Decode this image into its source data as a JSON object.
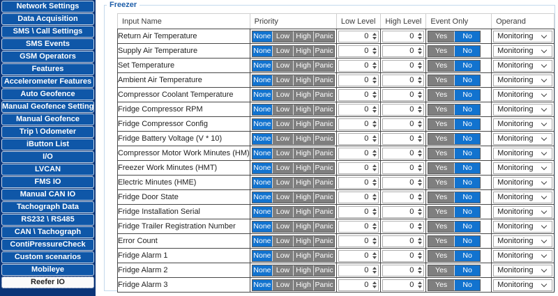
{
  "colors": {
    "accent": "#1273cf",
    "btn_gray": "#7f7f7f",
    "sidebar_bg": "#0b3578",
    "sidebar_btn": "#0f57a8",
    "group_title": "#1f5faa"
  },
  "sidebar": {
    "items": [
      {
        "label": "Network Settings",
        "selected": false
      },
      {
        "label": "Data Acquisition",
        "selected": false
      },
      {
        "label": "SMS \\ Call Settings",
        "selected": false
      },
      {
        "label": "SMS Events",
        "selected": false
      },
      {
        "label": "GSM Operators",
        "selected": false
      },
      {
        "label": "Features",
        "selected": false
      },
      {
        "label": "Accelerometer Features",
        "selected": false
      },
      {
        "label": "Auto Geofence",
        "selected": false
      },
      {
        "label": "Manual Geofence Settings",
        "selected": false
      },
      {
        "label": "Manual Geofence",
        "selected": false
      },
      {
        "label": "Trip \\ Odometer",
        "selected": false
      },
      {
        "label": "iButton List",
        "selected": false
      },
      {
        "label": "I/O",
        "selected": false
      },
      {
        "label": "LVCAN",
        "selected": false
      },
      {
        "label": "FMS IO",
        "selected": false
      },
      {
        "label": "Manual CAN IO",
        "selected": false
      },
      {
        "label": "Tachograph Data",
        "selected": false
      },
      {
        "label": "RS232 \\ RS485",
        "selected": false
      },
      {
        "label": "CAN \\ Tachograph",
        "selected": false
      },
      {
        "label": "ContiPressureCheck",
        "selected": false
      },
      {
        "label": "Custom scenarios",
        "selected": false
      },
      {
        "label": "Mobileye",
        "selected": false
      },
      {
        "label": "Reefer IO",
        "selected": true
      }
    ]
  },
  "panel": {
    "group_title": "Freezer",
    "table": {
      "columns": [
        "Input Name",
        "Priority",
        "Low Level",
        "High Level",
        "Event Only",
        "Operand"
      ],
      "priority_options": [
        "None",
        "Low",
        "High",
        "Panic"
      ],
      "event_only_options": [
        "Yes",
        "No"
      ],
      "rows": [
        {
          "name": "Return Air Temperature",
          "priority": "None",
          "low_level": "0",
          "high_level": "0",
          "event_only": "No",
          "operand": "Monitoring"
        },
        {
          "name": "Supply Air Temperature",
          "priority": "None",
          "low_level": "0",
          "high_level": "0",
          "event_only": "No",
          "operand": "Monitoring"
        },
        {
          "name": "Set Temperature",
          "priority": "None",
          "low_level": "0",
          "high_level": "0",
          "event_only": "No",
          "operand": "Monitoring"
        },
        {
          "name": "Ambient Air Temperature",
          "priority": "None",
          "low_level": "0",
          "high_level": "0",
          "event_only": "No",
          "operand": "Monitoring"
        },
        {
          "name": "Compressor Coolant Temperature",
          "priority": "None",
          "low_level": "0",
          "high_level": "0",
          "event_only": "No",
          "operand": "Monitoring"
        },
        {
          "name": "Fridge Compressor RPM",
          "priority": "None",
          "low_level": "0",
          "high_level": "0",
          "event_only": "No",
          "operand": "Monitoring"
        },
        {
          "name": "Fridge Compressor Config",
          "priority": "None",
          "low_level": "0",
          "high_level": "0",
          "event_only": "No",
          "operand": "Monitoring"
        },
        {
          "name": "Fridge Battery Voltage (V * 10)",
          "priority": "None",
          "low_level": "0",
          "high_level": "0",
          "event_only": "No",
          "operand": "Monitoring"
        },
        {
          "name": "Compressor Motor Work Minutes (HM)",
          "priority": "None",
          "low_level": "0",
          "high_level": "0",
          "event_only": "No",
          "operand": "Monitoring"
        },
        {
          "name": "Freezer Work Minutes (HMT)",
          "priority": "None",
          "low_level": "0",
          "high_level": "0",
          "event_only": "No",
          "operand": "Monitoring"
        },
        {
          "name": "Electric Minutes (HME)",
          "priority": "None",
          "low_level": "0",
          "high_level": "0",
          "event_only": "No",
          "operand": "Monitoring"
        },
        {
          "name": "Fridge Door State",
          "priority": "None",
          "low_level": "0",
          "high_level": "0",
          "event_only": "No",
          "operand": "Monitoring"
        },
        {
          "name": "Fridge Installation Serial",
          "priority": "None",
          "low_level": "0",
          "high_level": "0",
          "event_only": "No",
          "operand": "Monitoring"
        },
        {
          "name": "Fridge Trailer Registration Number",
          "priority": "None",
          "low_level": "0",
          "high_level": "0",
          "event_only": "No",
          "operand": "Monitoring"
        },
        {
          "name": "Error Count",
          "priority": "None",
          "low_level": "0",
          "high_level": "0",
          "event_only": "No",
          "operand": "Monitoring"
        },
        {
          "name": "Fridge Alarm 1",
          "priority": "None",
          "low_level": "0",
          "high_level": "0",
          "event_only": "No",
          "operand": "Monitoring"
        },
        {
          "name": "Fridge Alarm 2",
          "priority": "None",
          "low_level": "0",
          "high_level": "0",
          "event_only": "No",
          "operand": "Monitoring"
        },
        {
          "name": "Fridge Alarm 3",
          "priority": "None",
          "low_level": "0",
          "high_level": "0",
          "event_only": "No",
          "operand": "Monitoring"
        }
      ]
    }
  }
}
